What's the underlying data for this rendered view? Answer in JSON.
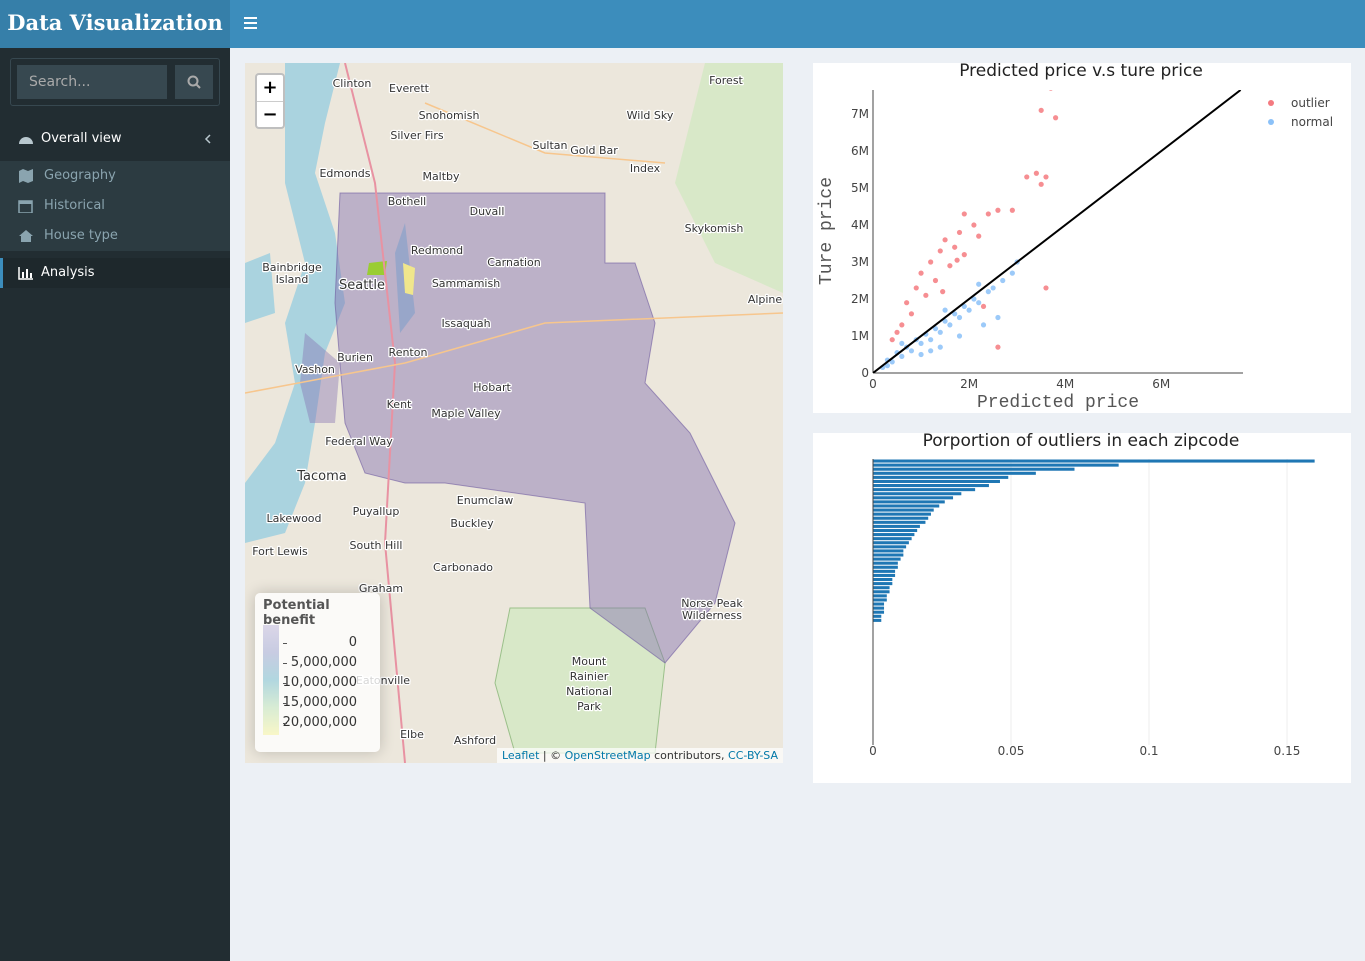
{
  "header": {
    "title": "Data Visualization"
  },
  "sidebar": {
    "search_placeholder": "Search...",
    "menu": [
      "Overall view",
      "Geography",
      "Historical",
      "House type",
      "Analysis"
    ]
  },
  "map": {
    "zoom_in": "+",
    "zoom_out": "−",
    "labels": [
      "Clinton",
      "Everett",
      "Snohomish",
      "Silver Firs",
      "Sultan",
      "Gold Bar",
      "Index",
      "Edmonds",
      "Maltby",
      "Bothell",
      "Duvall",
      "Skykomish",
      "Redmond",
      "Carnation",
      "Bainbridge",
      "Island",
      "Seattle",
      "Sammamish",
      "Issaquah",
      "Renton",
      "Burien",
      "Vashon",
      "Hobart",
      "Kent",
      "Maple Valley",
      "Federal Way",
      "Tacoma",
      "Enumclaw",
      "Puyallup",
      "Lakewood",
      "Buckley",
      "South Hill",
      "Fort Lewis",
      "Carbonado",
      "Graham",
      "Eatonville",
      "Elbe",
      "Ashford",
      "Mount",
      "Rainier",
      "National",
      "Park",
      "Norse Peak",
      "Wilderness",
      "Alpine",
      "Wild Sky",
      "Forest"
    ],
    "legend": {
      "title": "Potential benefit",
      "labels": [
        "0",
        "5,000,000",
        "10,000,000",
        "15,000,000",
        "20,000,000"
      ]
    },
    "attribution": {
      "leaflet": "Leaflet",
      "sep": "| ©",
      "osm": "OpenStreetMap",
      "contrib": "contributors,",
      "license": "CC-BY-SA"
    }
  },
  "chart_data": [
    {
      "type": "scatter",
      "title": "Predicted price v.s ture price",
      "xlabel": "Predicted price",
      "ylabel": "Ture price",
      "legend": "top-right",
      "xlim": [
        0,
        7700000
      ],
      "ylim": [
        0,
        7650000
      ],
      "xticks": [
        0,
        {
          "value": 2000000,
          "label": "2M"
        },
        {
          "value": 4000000,
          "label": "4M"
        },
        {
          "value": 6000000,
          "label": "6M"
        }
      ],
      "yticks": [
        0,
        {
          "value": 1000000,
          "label": "1M"
        },
        {
          "value": 2000000,
          "label": "2M"
        },
        {
          "value": 3000000,
          "label": "3M"
        },
        {
          "value": 4000000,
          "label": "4M"
        },
        {
          "value": 5000000,
          "label": "5M"
        },
        {
          "value": 6000000,
          "label": "6M"
        },
        {
          "value": 7000000,
          "label": "7M"
        }
      ],
      "reference_line": {
        "x": [
          0,
          7650000
        ],
        "y": [
          0,
          7650000
        ],
        "color": "#000000"
      },
      "series": [
        {
          "name": "outlier",
          "color": "#f0424a",
          "x": [
            3700000,
            3500000,
            3800000,
            3400000,
            3600000,
            3200000,
            3500000,
            2600000,
            2900000,
            2400000,
            1900000,
            2100000,
            1800000,
            2200000,
            1500000,
            1700000,
            1400000,
            1900000,
            1200000,
            1600000,
            1000000,
            1300000,
            900000,
            1100000,
            700000,
            800000,
            600000,
            500000,
            400000,
            3600000,
            2600000,
            2300000,
            1750000,
            1450000
          ],
          "values": [
            7700000,
            7100000,
            6900000,
            5400000,
            5300000,
            5300000,
            5100000,
            4400000,
            4400000,
            4300000,
            4300000,
            4000000,
            3800000,
            3700000,
            3600000,
            3400000,
            3300000,
            3200000,
            3000000,
            2900000,
            2700000,
            2500000,
            2300000,
            2100000,
            1900000,
            1600000,
            1300000,
            1100000,
            900000,
            2300000,
            700000,
            1800000,
            3050000,
            2200000
          ]
        },
        {
          "name": "normal",
          "color": "#5aa7f5",
          "x": [
            200000,
            300000,
            400000,
            500000,
            600000,
            700000,
            800000,
            900000,
            1000000,
            1100000,
            1200000,
            1300000,
            1400000,
            1500000,
            1600000,
            1700000,
            1800000,
            1900000,
            2000000,
            2100000,
            2200000,
            2400000,
            2500000,
            2700000,
            2900000,
            3000000,
            1200000,
            1400000,
            1000000,
            600000,
            2300000,
            1800000,
            2600000,
            300000,
            1500000,
            2200000
          ],
          "values": [
            150000,
            350000,
            300000,
            550000,
            450000,
            700000,
            600000,
            900000,
            800000,
            1050000,
            900000,
            1200000,
            1100000,
            1400000,
            1300000,
            1600000,
            1500000,
            1800000,
            1700000,
            2000000,
            1900000,
            2200000,
            2300000,
            2500000,
            2700000,
            3000000,
            600000,
            700000,
            500000,
            800000,
            1300000,
            1000000,
            1500000,
            200000,
            1700000,
            2400000
          ]
        }
      ]
    },
    {
      "type": "barh",
      "title": "Porportion of outliers in each zipcode",
      "color": "#1f77b4",
      "grid": true,
      "xlim": [
        0,
        0.171
      ],
      "xticks": [
        0,
        0.05,
        0.1,
        0.15
      ],
      "categories": [
        null,
        null,
        null,
        null,
        null,
        null,
        null,
        null,
        null,
        null,
        null,
        null,
        null,
        null,
        null,
        null,
        null,
        null,
        null,
        null,
        null,
        null,
        null,
        null,
        null,
        null,
        null,
        null,
        null,
        null,
        null,
        null,
        null,
        null,
        null,
        null,
        null,
        null,
        null,
        null,
        null,
        null,
        null,
        null,
        null,
        null,
        null,
        null,
        null,
        null,
        null,
        null,
        null,
        null,
        null,
        null,
        null,
        null,
        null,
        null,
        null,
        null,
        null,
        null,
        null,
        null,
        null,
        null,
        null,
        null
      ],
      "values": [
        0.16,
        0.089,
        0.073,
        0.059,
        0.049,
        0.046,
        0.042,
        0.037,
        0.032,
        0.029,
        0.026,
        0.024,
        0.022,
        0.021,
        0.02,
        0.019,
        0.017,
        0.016,
        0.015,
        0.014,
        0.013,
        0.012,
        0.011,
        0.011,
        0.01,
        0.009,
        0.009,
        0.008,
        0.008,
        0.007,
        0.007,
        0.006,
        0.006,
        0.005,
        0.005,
        0.004,
        0.004,
        0.004,
        0.003,
        0.003,
        0,
        0,
        0,
        0,
        0,
        0,
        0,
        0,
        0,
        0,
        0,
        0,
        0,
        0,
        0,
        0,
        0,
        0,
        0,
        0,
        0,
        0,
        0,
        0,
        0,
        0,
        0,
        0,
        0,
        0
      ]
    }
  ]
}
